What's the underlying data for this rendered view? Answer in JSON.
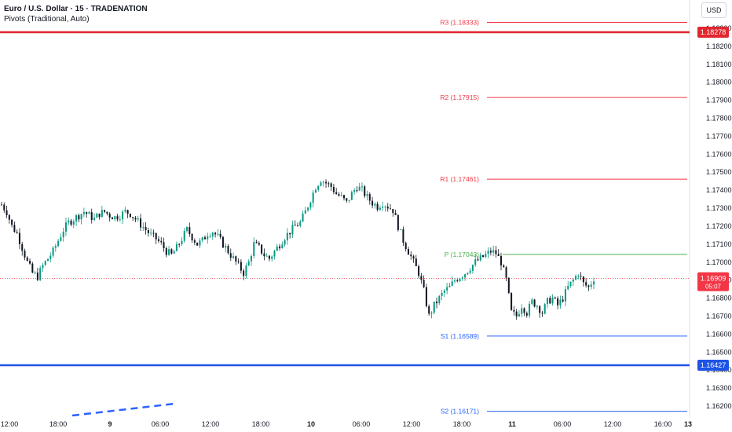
{
  "header": {
    "symbol_line": "Euro / U.S. Dollar · 15 · TRADENATION",
    "indicator_line": "Pivots (Traditional, Auto)"
  },
  "price_axis": {
    "currency_button": "USD",
    "ticks": [
      "1.18300",
      "1.18200",
      "1.18100",
      "1.18000",
      "1.17900",
      "1.17800",
      "1.17700",
      "1.17600",
      "1.17500",
      "1.17400",
      "1.17300",
      "1.17200",
      "1.17100",
      "1.17000",
      "1.16900",
      "1.16800",
      "1.16700",
      "1.16600",
      "1.16500",
      "1.16400",
      "1.16300",
      "1.16200"
    ]
  },
  "time_axis": {
    "ticks": [
      "12:00",
      "18:00",
      "9",
      "06:00",
      "12:00",
      "18:00",
      "10",
      "06:00",
      "12:00",
      "18:00",
      "11",
      "06:00",
      "12:00",
      "16:00",
      "13"
    ]
  },
  "chart_data": {
    "type": "candlestick",
    "ylim": [
      1.1615,
      1.184
    ],
    "pivot_levels": [
      {
        "label": "R3 (1.18333)",
        "value": 1.18333,
        "color": "#f23645"
      },
      {
        "label": "R2 (1.17915)",
        "value": 1.17915,
        "color": "#f23645"
      },
      {
        "label": "R1 (1.17461)",
        "value": 1.17461,
        "color": "#f23645"
      },
      {
        "label": "P (1.17043)",
        "value": 1.17043,
        "color": "#4caf50"
      },
      {
        "label": "S1 (1.16589)",
        "value": 1.16589,
        "color": "#2962ff"
      },
      {
        "label": "S2 (1.16171)",
        "value": 1.16171,
        "color": "#2962ff"
      }
    ],
    "horizontal_lines": [
      {
        "label": "1.18278",
        "value": 1.18278,
        "color": "#e0262f"
      },
      {
        "label": "1.16427",
        "value": 1.16427,
        "color": "#1e53e5"
      }
    ],
    "current_price": {
      "label": "1.16909",
      "value": 1.16909,
      "countdown": "05:07",
      "color": "#f23645"
    },
    "close_path": [
      1.1732,
      1.1728,
      1.172,
      1.1716,
      1.1708,
      1.17,
      1.1694,
      1.1692,
      1.1698,
      1.1702,
      1.1706,
      1.1712,
      1.1718,
      1.1722,
      1.1724,
      1.1726,
      1.1728,
      1.1726,
      1.1724,
      1.1727,
      1.1728,
      1.1726,
      1.1725,
      1.1726,
      1.1728,
      1.1727,
      1.1724,
      1.1721,
      1.1718,
      1.1715,
      1.1713,
      1.171,
      1.1706,
      1.1704,
      1.1708,
      1.1713,
      1.1718,
      1.1714,
      1.171,
      1.1712,
      1.1716,
      1.1717,
      1.1714,
      1.171,
      1.1706,
      1.1702,
      1.1698,
      1.1694,
      1.17,
      1.171,
      1.1708,
      1.1704,
      1.1702,
      1.1706,
      1.171,
      1.1714,
      1.1717,
      1.172,
      1.1722,
      1.1728,
      1.1735,
      1.1742,
      1.1746,
      1.1744,
      1.1742,
      1.1738,
      1.1736,
      1.1733,
      1.1738,
      1.1742,
      1.174,
      1.1736,
      1.1733,
      1.1731,
      1.1733,
      1.1731,
      1.1729,
      1.172,
      1.1712,
      1.1706,
      1.17,
      1.1694,
      1.1684,
      1.167,
      1.1676,
      1.168,
      1.1684,
      1.1686,
      1.169,
      1.1692,
      1.1694,
      1.1697,
      1.17,
      1.1702,
      1.1704,
      1.1706,
      1.1705,
      1.17,
      1.169,
      1.1672,
      1.167,
      1.1676,
      1.1672,
      1.1678,
      1.1676,
      1.1672,
      1.1678,
      1.168,
      1.1676,
      1.168,
      1.1686,
      1.169,
      1.1694,
      1.1688,
      1.1686,
      1.1691
    ]
  }
}
